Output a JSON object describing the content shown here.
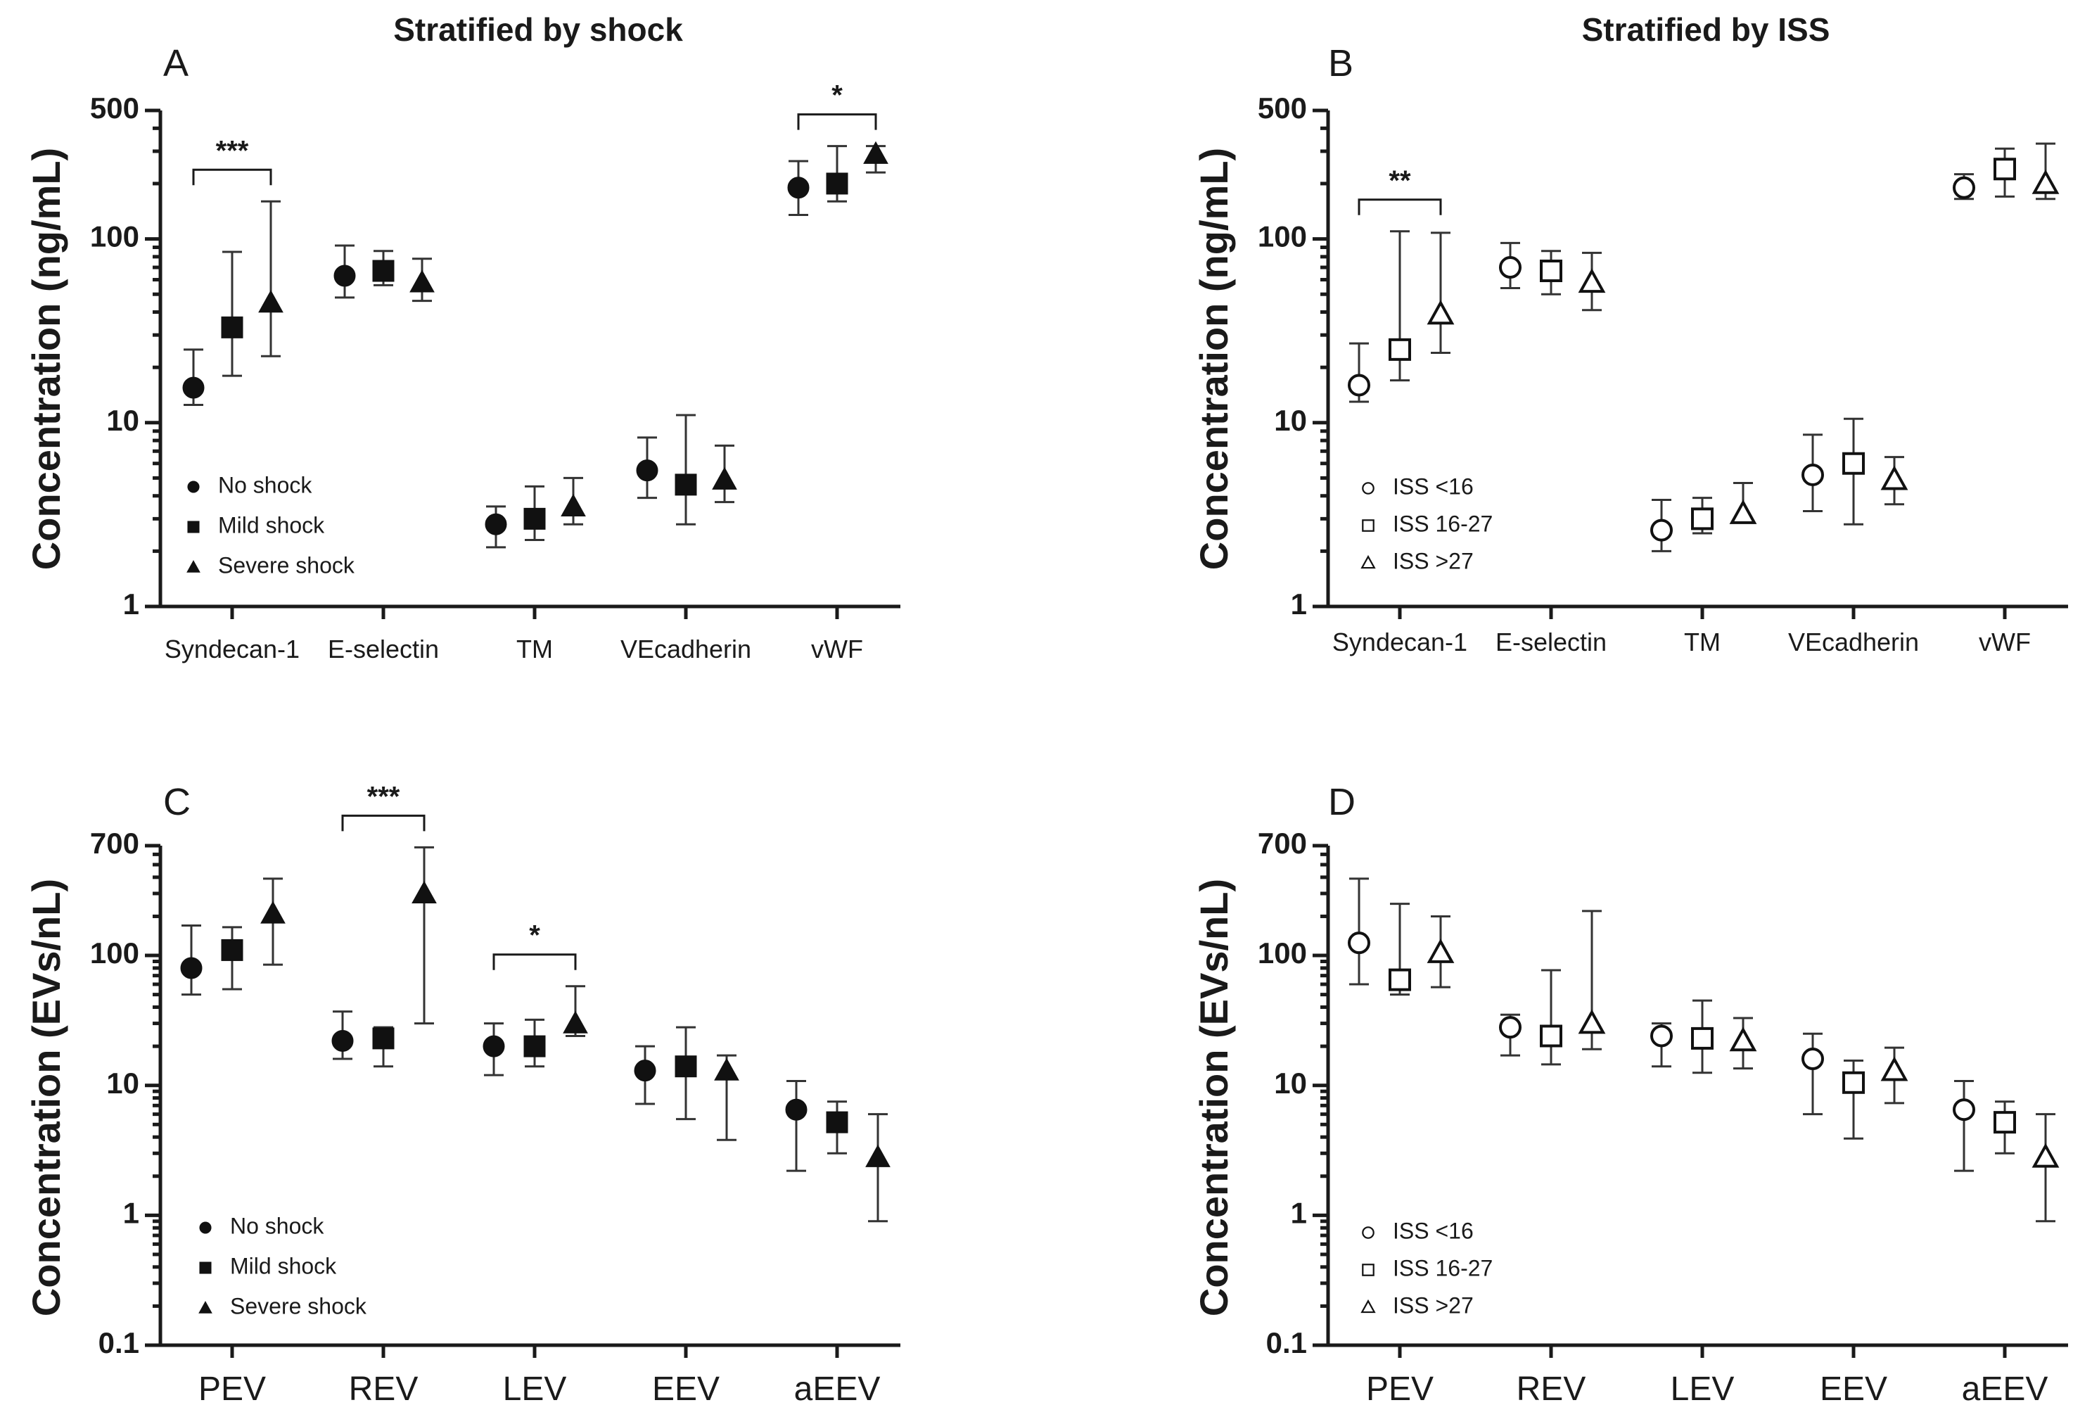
{
  "column_titles": {
    "left": "Stratified by shock",
    "right": "Stratified by ISS"
  },
  "chart_data": [
    {
      "panel": "A",
      "type": "scatter",
      "yscale": "log",
      "ylabel": "Concentration (ng/mL)",
      "ylim": [
        1,
        500
      ],
      "yticks": [
        "1",
        "10",
        "100",
        "500"
      ],
      "categories": [
        "Syndecan-1",
        "E-selectin",
        "TM",
        "VEcadherin",
        "vWF"
      ],
      "series": [
        {
          "name": "No shock",
          "marker": "circle",
          "filled": true,
          "values": [
            15.5,
            63,
            2.8,
            5.5,
            190
          ],
          "err_low": [
            12.5,
            48,
            2.1,
            3.9,
            135
          ],
          "err_high": [
            25,
            92,
            3.5,
            8.3,
            265
          ]
        },
        {
          "name": "Mild shock",
          "marker": "square",
          "filled": true,
          "values": [
            33,
            67,
            3.0,
            4.6,
            200
          ],
          "err_low": [
            18,
            56,
            2.3,
            2.8,
            160
          ],
          "err_high": [
            85,
            86,
            4.5,
            11,
            320
          ]
        },
        {
          "name": "Severe shock",
          "marker": "triangle",
          "filled": true,
          "values": [
            45,
            58,
            3.5,
            4.9,
            290
          ],
          "err_low": [
            23,
            46,
            2.8,
            3.7,
            230
          ],
          "err_high": [
            160,
            78,
            5.0,
            7.5,
            320
          ]
        }
      ],
      "significance": [
        {
          "category": "Syndecan-1",
          "from": "No shock",
          "to": "Severe shock",
          "label": "***"
        },
        {
          "category": "vWF",
          "from": "No shock",
          "to": "Severe shock",
          "label": "*"
        }
      ]
    },
    {
      "panel": "B",
      "type": "scatter",
      "yscale": "log",
      "ylabel": "Concentration (ng/mL)",
      "ylim": [
        1,
        500
      ],
      "yticks": [
        "1",
        "10",
        "100",
        "500"
      ],
      "categories": [
        "Syndecan-1",
        "E-selectin",
        "TM",
        "VEcadherin",
        "vWF"
      ],
      "series": [
        {
          "name": "ISS <16",
          "marker": "circle",
          "filled": false,
          "values": [
            16,
            70,
            2.6,
            5.2,
            190
          ],
          "err_low": [
            13,
            54,
            2.0,
            3.3,
            165
          ],
          "err_high": [
            27,
            95,
            3.8,
            8.6,
            225
          ]
        },
        {
          "name": "ISS 16-27",
          "marker": "square",
          "filled": false,
          "values": [
            25,
            67,
            3.0,
            6.0,
            240
          ],
          "err_low": [
            17,
            50,
            2.5,
            2.8,
            170
          ],
          "err_high": [
            110,
            86,
            3.9,
            10.5,
            310
          ]
        },
        {
          "name": "ISS >27",
          "marker": "triangle",
          "filled": false,
          "values": [
            39,
            58,
            3.2,
            4.9,
            200
          ],
          "err_low": [
            24,
            41,
            3.0,
            3.6,
            165
          ],
          "err_high": [
            108,
            84,
            4.7,
            6.5,
            330
          ]
        }
      ],
      "significance": [
        {
          "category": "Syndecan-1",
          "from": "ISS <16",
          "to": "ISS >27",
          "label": "**"
        }
      ]
    },
    {
      "panel": "C",
      "type": "scatter",
      "yscale": "log",
      "ylabel": "Concentration (EVs/nL)",
      "ylim": [
        0.1,
        700
      ],
      "yticks": [
        "0.1",
        "1",
        "10",
        "100",
        "700"
      ],
      "categories": [
        "PEV",
        "REV",
        "LEV",
        "EEV",
        "aEEV"
      ],
      "series": [
        {
          "name": "No shock",
          "marker": "circle",
          "filled": true,
          "values": [
            80,
            22,
            20,
            13,
            6.5
          ],
          "err_low": [
            50,
            16,
            12,
            7.2,
            2.2
          ],
          "err_high": [
            170,
            37,
            30,
            20,
            10.8
          ]
        },
        {
          "name": "Mild shock",
          "marker": "square",
          "filled": true,
          "values": [
            110,
            23,
            20,
            14,
            5.2
          ],
          "err_low": [
            55,
            14,
            14,
            5.5,
            3.0
          ],
          "err_high": [
            165,
            28,
            32,
            28,
            7.5
          ]
        },
        {
          "name": "Severe shock",
          "marker": "triangle",
          "filled": true,
          "values": [
            210,
            300,
            30,
            13,
            2.8
          ],
          "err_low": [
            85,
            30,
            24,
            3.8,
            0.9
          ],
          "err_high": [
            390,
            680,
            58,
            17,
            6.0
          ]
        }
      ],
      "significance": [
        {
          "category": "REV",
          "from": "No shock",
          "to": "Severe shock",
          "label": "***"
        },
        {
          "category": "LEV",
          "from": "No shock",
          "to": "Severe shock",
          "label": "*"
        }
      ]
    },
    {
      "panel": "D",
      "type": "scatter",
      "yscale": "log",
      "ylabel": "Concentration (EVs/nL)",
      "ylim": [
        0.1,
        700
      ],
      "yticks": [
        "0.1",
        "1",
        "10",
        "100",
        "700"
      ],
      "categories": [
        "PEV",
        "REV",
        "LEV",
        "EEV",
        "aEEV"
      ],
      "series": [
        {
          "name": "ISS <16",
          "marker": "circle",
          "filled": false,
          "values": [
            125,
            28,
            24,
            16,
            6.5
          ],
          "err_low": [
            60,
            17,
            14,
            6.0,
            2.2
          ],
          "err_high": [
            390,
            35,
            30,
            25,
            10.8
          ]
        },
        {
          "name": "ISS 16-27",
          "marker": "square",
          "filled": false,
          "values": [
            65,
            24,
            23,
            10.5,
            5.2
          ],
          "err_low": [
            50,
            14.5,
            12.5,
            3.9,
            3.0
          ],
          "err_high": [
            250,
            77,
            45,
            15.5,
            7.5
          ]
        },
        {
          "name": "ISS >27",
          "marker": "triangle",
          "filled": false,
          "values": [
            105,
            30,
            22,
            13,
            2.8
          ],
          "err_low": [
            57,
            19,
            13.5,
            7.3,
            0.9
          ],
          "err_high": [
            200,
            220,
            33,
            19.5,
            6.0
          ]
        }
      ],
      "significance": []
    }
  ]
}
